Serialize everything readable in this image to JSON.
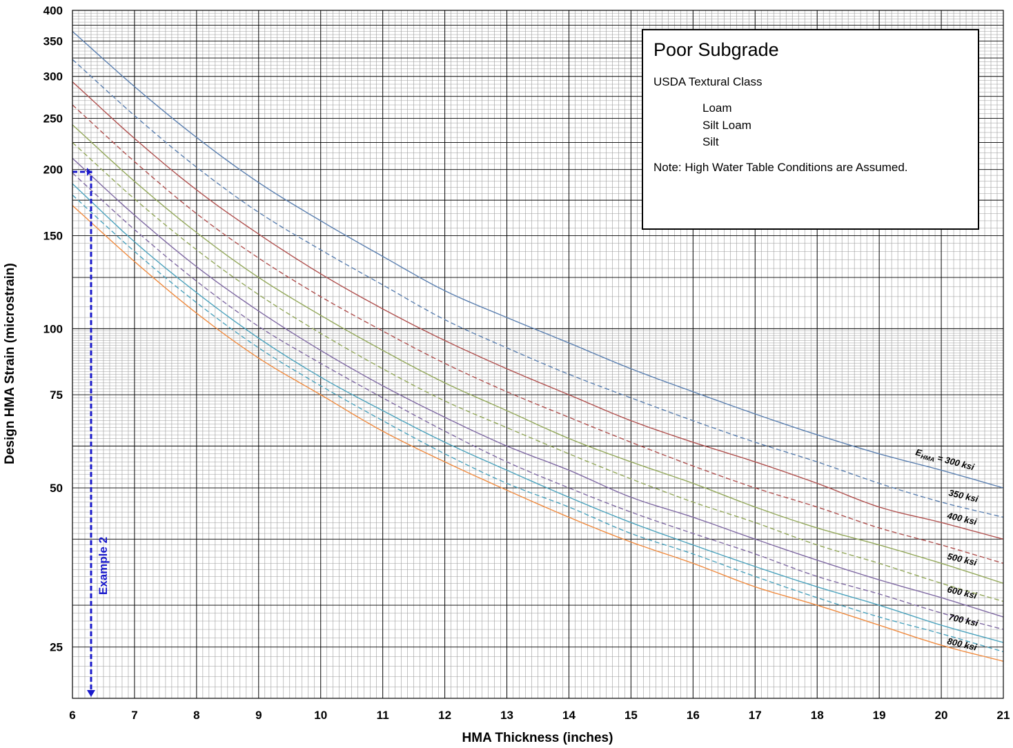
{
  "chart_data": {
    "type": "line",
    "xlabel": "HMA Thickness (inches)",
    "ylabel": "Design HMA Strain (microstrain)",
    "xlim": [
      6,
      21
    ],
    "ylim": [
      20,
      400
    ],
    "y_scale": "log",
    "grid": "major and minor",
    "x_ticks": [
      "6",
      "7",
      "8",
      "9",
      "10",
      "11",
      "12",
      "13",
      "14",
      "15",
      "16",
      "17",
      "18",
      "19",
      "20",
      "21"
    ],
    "y_ticks": [
      {
        "value": 25,
        "label": "25"
      },
      {
        "value": 50,
        "label": "50"
      },
      {
        "value": 75,
        "label": "75"
      },
      {
        "value": 100,
        "label": "100"
      },
      {
        "value": 150,
        "label": "150"
      },
      {
        "value": 200,
        "label": "200"
      },
      {
        "value": 250,
        "label": "250"
      },
      {
        "value": 300,
        "label": "300"
      },
      {
        "value": 350,
        "label": "350"
      },
      {
        "value": 400,
        "label": "400"
      }
    ],
    "x": [
      6,
      7,
      8,
      9,
      10,
      11,
      12,
      13,
      14,
      15,
      16,
      17,
      18,
      19,
      20,
      21
    ],
    "series": [
      {
        "name": "EHMA = 300 ksi",
        "color": "#5a7fb0",
        "dash": false,
        "values": [
          365,
          287,
          230,
          189,
          160,
          137,
          118,
          105,
          94,
          84,
          76,
          69,
          63,
          58,
          54,
          50
        ]
      },
      {
        "name": "350 ksi",
        "color": "#5a7fb0",
        "dash": true,
        "values": [
          323,
          253,
          202,
          166,
          141,
          121,
          104,
          92,
          82,
          74,
          67,
          61,
          56,
          51,
          47,
          44
        ]
      },
      {
        "name": "400 ksi",
        "color": "#b0504e",
        "dash": false,
        "values": [
          293,
          229,
          183,
          151,
          127,
          109,
          95,
          84,
          75,
          67,
          61,
          56,
          51,
          46,
          43,
          40
        ]
      },
      {
        "name": "",
        "color": "#b0504e",
        "dash": true,
        "values": [
          265,
          207,
          165,
          136,
          115,
          99,
          86,
          76,
          68,
          61,
          55,
          50,
          46,
          42,
          39,
          36
        ]
      },
      {
        "name": "500 ksi",
        "color": "#93a85a",
        "dash": false,
        "values": [
          243,
          190,
          152,
          125,
          106,
          91,
          79,
          70,
          62,
          56,
          51,
          46,
          42,
          39,
          36,
          33
        ]
      },
      {
        "name": "",
        "color": "#93a85a",
        "dash": true,
        "values": [
          225,
          176,
          141,
          116,
          98,
          84,
          73,
          65,
          58,
          52,
          47,
          43,
          39,
          36,
          33,
          30.5
        ]
      },
      {
        "name": "600 ksi",
        "color": "#7f69a3",
        "dash": false,
        "values": [
          210,
          164,
          131,
          108,
          91,
          78,
          68,
          60,
          54,
          48,
          44,
          40,
          36.5,
          33.5,
          31,
          28.5
        ]
      },
      {
        "name": "",
        "color": "#7f69a3",
        "dash": true,
        "values": [
          197,
          154,
          123,
          101,
          86,
          74,
          64,
          56,
          50,
          45,
          41,
          37.5,
          34,
          31.5,
          29,
          27
        ]
      },
      {
        "name": "700 ksi",
        "color": "#4aa2bd",
        "dash": false,
        "values": [
          188,
          146,
          117,
          96,
          81,
          70,
          61,
          54,
          48,
          43,
          39,
          35.5,
          32.5,
          30,
          27.5,
          25.5
        ]
      },
      {
        "name": "",
        "color": "#4aa2bd",
        "dash": true,
        "values": [
          179,
          140,
          112,
          92,
          78,
          67,
          58,
          51,
          46,
          41,
          37.5,
          34,
          31,
          28.5,
          26.5,
          24.5
        ]
      },
      {
        "name": "800 ksi",
        "color": "#f08a3e",
        "dash": false,
        "values": [
          171,
          134,
          107,
          88,
          75,
          64,
          56,
          49.5,
          44,
          39.5,
          36,
          32.5,
          30,
          27.5,
          25.2,
          23.5
        ]
      }
    ],
    "annotations": {
      "curve_labels": [
        {
          "text_main": "E",
          "text_sub": "HMA",
          "text_rest": " = 300 ksi"
        },
        {
          "text": "350 ksi"
        },
        {
          "text": "400 ksi"
        },
        {
          "text": "500 ksi"
        },
        {
          "text": "600 ksi"
        },
        {
          "text": "700 ksi"
        },
        {
          "text": "800 ksi"
        }
      ],
      "example": {
        "label": "Example 2",
        "x": 6.3,
        "y": 198,
        "color": "#1a1acc"
      }
    }
  },
  "infobox": {
    "title": "Poor Subgrade",
    "subtitle": "USDA Textural Class",
    "classes": [
      "Loam",
      "Silt Loam",
      "Silt"
    ],
    "note": "Note:  High Water Table Conditions are Assumed."
  }
}
